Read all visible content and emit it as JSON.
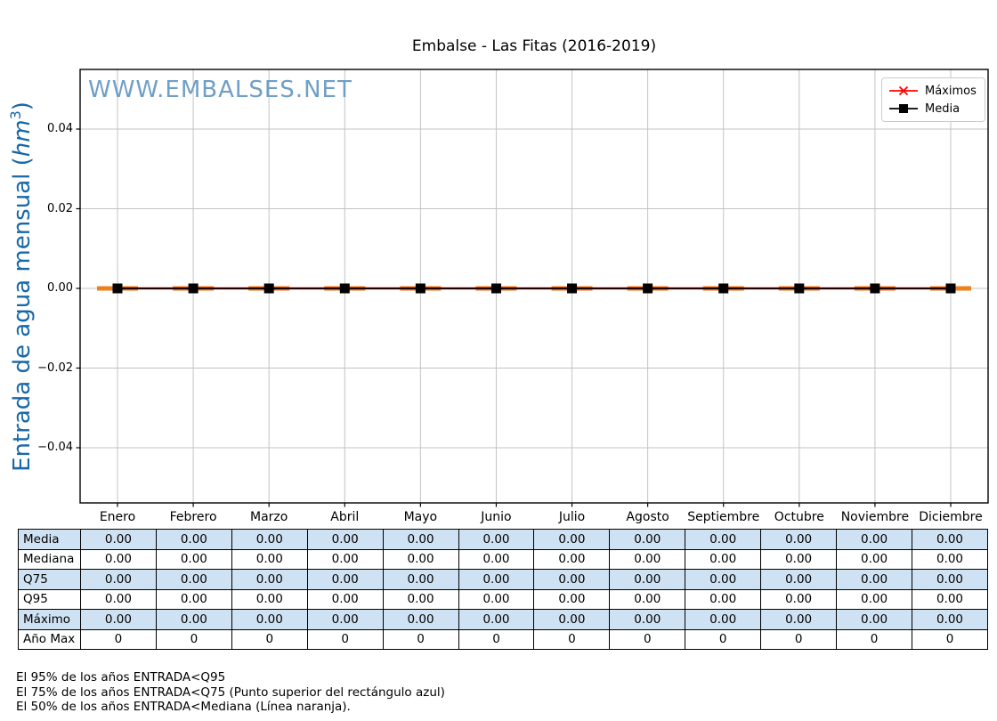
{
  "chart_data": {
    "type": "line",
    "title": "Embalse - Las Fitas (2016-2019)",
    "watermark": "WWW.EMBALSES.NET",
    "ylabel": {
      "prefix": "Entrada de agua mensual (",
      "unit": "hm",
      "exponent": "3",
      "suffix": ")"
    },
    "xlabel": "",
    "categories": [
      "Enero",
      "Febrero",
      "Marzo",
      "Abril",
      "Mayo",
      "Junio",
      "Julio",
      "Agosto",
      "Septiembre",
      "Octubre",
      "Noviembre",
      "Diciembre"
    ],
    "series": [
      {
        "name": "Máximos",
        "marker": "x",
        "color": "#ff0000",
        "values": [
          0,
          0,
          0,
          0,
          0,
          0,
          0,
          0,
          0,
          0,
          0,
          0
        ]
      },
      {
        "name": "Media",
        "marker": "square",
        "color": "#000000",
        "values": [
          0,
          0,
          0,
          0,
          0,
          0,
          0,
          0,
          0,
          0,
          0,
          0
        ]
      }
    ],
    "boxplot": {
      "median_color": "#ee7f1d",
      "median_values": [
        0,
        0,
        0,
        0,
        0,
        0,
        0,
        0,
        0,
        0,
        0,
        0
      ],
      "q75_values": [
        0,
        0,
        0,
        0,
        0,
        0,
        0,
        0,
        0,
        0,
        0,
        0
      ],
      "q95_values": [
        0,
        0,
        0,
        0,
        0,
        0,
        0,
        0,
        0,
        0,
        0,
        0
      ]
    },
    "ytick_labels": [
      "0.04",
      "0.02",
      "0.00",
      "−0.02",
      "−0.04"
    ],
    "ytick_values": [
      0.04,
      0.02,
      0.0,
      -0.02,
      -0.04
    ],
    "ylim": [
      -0.0539,
      0.055
    ],
    "grid": true,
    "legend_position": "upper right"
  },
  "table": {
    "rows": [
      {
        "label": "Media",
        "values": [
          "0.00",
          "0.00",
          "0.00",
          "0.00",
          "0.00",
          "0.00",
          "0.00",
          "0.00",
          "0.00",
          "0.00",
          "0.00",
          "0.00"
        ]
      },
      {
        "label": "Mediana",
        "values": [
          "0.00",
          "0.00",
          "0.00",
          "0.00",
          "0.00",
          "0.00",
          "0.00",
          "0.00",
          "0.00",
          "0.00",
          "0.00",
          "0.00"
        ]
      },
      {
        "label": "Q75",
        "values": [
          "0.00",
          "0.00",
          "0.00",
          "0.00",
          "0.00",
          "0.00",
          "0.00",
          "0.00",
          "0.00",
          "0.00",
          "0.00",
          "0.00"
        ]
      },
      {
        "label": "Q95",
        "values": [
          "0.00",
          "0.00",
          "0.00",
          "0.00",
          "0.00",
          "0.00",
          "0.00",
          "0.00",
          "0.00",
          "0.00",
          "0.00",
          "0.00"
        ]
      },
      {
        "label": "Máximo",
        "values": [
          "0.00",
          "0.00",
          "0.00",
          "0.00",
          "0.00",
          "0.00",
          "0.00",
          "0.00",
          "0.00",
          "0.00",
          "0.00",
          "0.00"
        ]
      },
      {
        "label": "Año Max",
        "values": [
          "0",
          "0",
          "0",
          "0",
          "0",
          "0",
          "0",
          "0",
          "0",
          "0",
          "0",
          "0"
        ]
      }
    ],
    "highlight_color": "#cfe2f3"
  },
  "footer": {
    "lines": [
      "El 95% de los años ENTRADA<Q95",
      "El 75% de los años ENTRADA<Q75 (Punto superior del rectángulo azul)",
      "El 50% de los años ENTRADA<Mediana (Línea naranja)."
    ]
  },
  "colors": {
    "watermark": "#6f9ec6",
    "ylabel": "#1768a9",
    "grid": "#c3c3c3",
    "axis": "#000000",
    "maximos_line": "#ff0000",
    "media_line": "#000000",
    "median_segment": "#ee7f1d",
    "table_highlight": "#cfe2f3",
    "legend_border": "#cccccc"
  }
}
